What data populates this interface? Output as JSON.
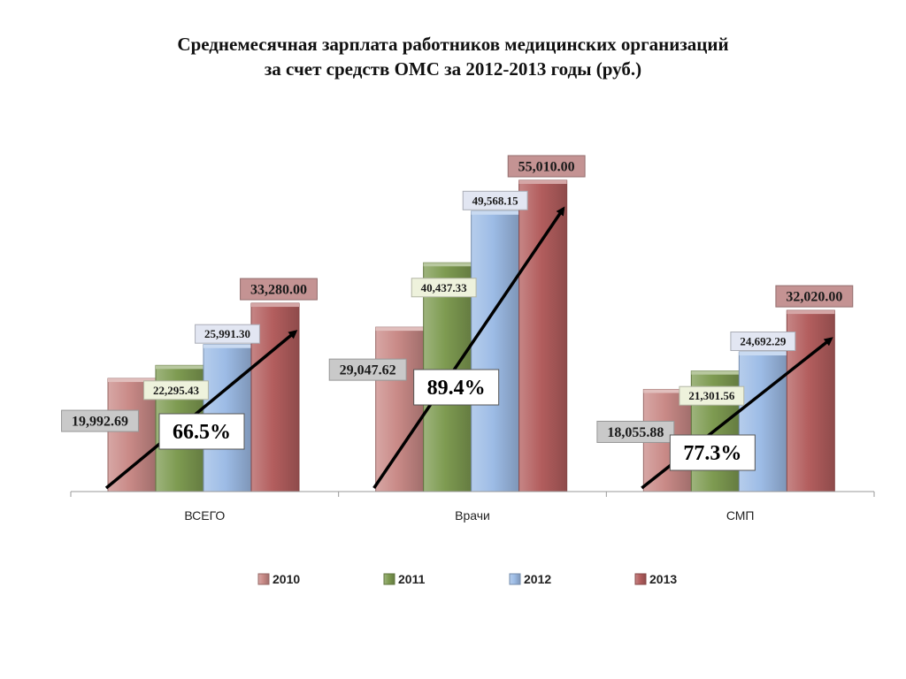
{
  "title": {
    "line1": "Среднемесячная зарплата работников медицинских организаций",
    "line2": "за счет средств ОМС за 2012-2013 годы (руб.)"
  },
  "chart_data": {
    "type": "bar",
    "title": "Среднемесячная зарплата работников медицинских организаций за счет средств ОМС за 2012-2013 годы (руб.)",
    "categories": [
      "ВСЕГО",
      "Врачи",
      "СМП"
    ],
    "series": [
      {
        "name": "2010",
        "color": "#c98a87",
        "label_bg": "#c9c9c9",
        "values": [
          19992.69,
          29047.62,
          18055.88
        ],
        "labels": [
          "19,992.69",
          "29,047.62",
          "18,055.88"
        ]
      },
      {
        "name": "2011",
        "color": "#7e9b51",
        "label_bg": "#eef2dc",
        "values": [
          22295.43,
          40437.33,
          21301.56
        ],
        "labels": [
          "22,295.43",
          "40,437.33",
          "21,301.56"
        ]
      },
      {
        "name": "2012",
        "color": "#9dbce6",
        "label_bg": "#e2e6f2",
        "values": [
          25991.3,
          49568.15,
          24692.29
        ],
        "labels": [
          "25,991.30",
          "49,568.15",
          "24,692.29"
        ]
      },
      {
        "name": "2013",
        "color": "#b35e5e",
        "label_bg": "#c49393",
        "values": [
          33280.0,
          55010.0,
          32020.0
        ],
        "labels": [
          "33,280.00",
          "55,010.00",
          "32,020.00"
        ]
      }
    ],
    "growth": [
      "66.5%",
      "89.4%",
      "77.3%"
    ],
    "ylim": [
      0,
      60000
    ],
    "legend_position": "bottom",
    "grid": false,
    "xlabel": "",
    "ylabel": ""
  }
}
